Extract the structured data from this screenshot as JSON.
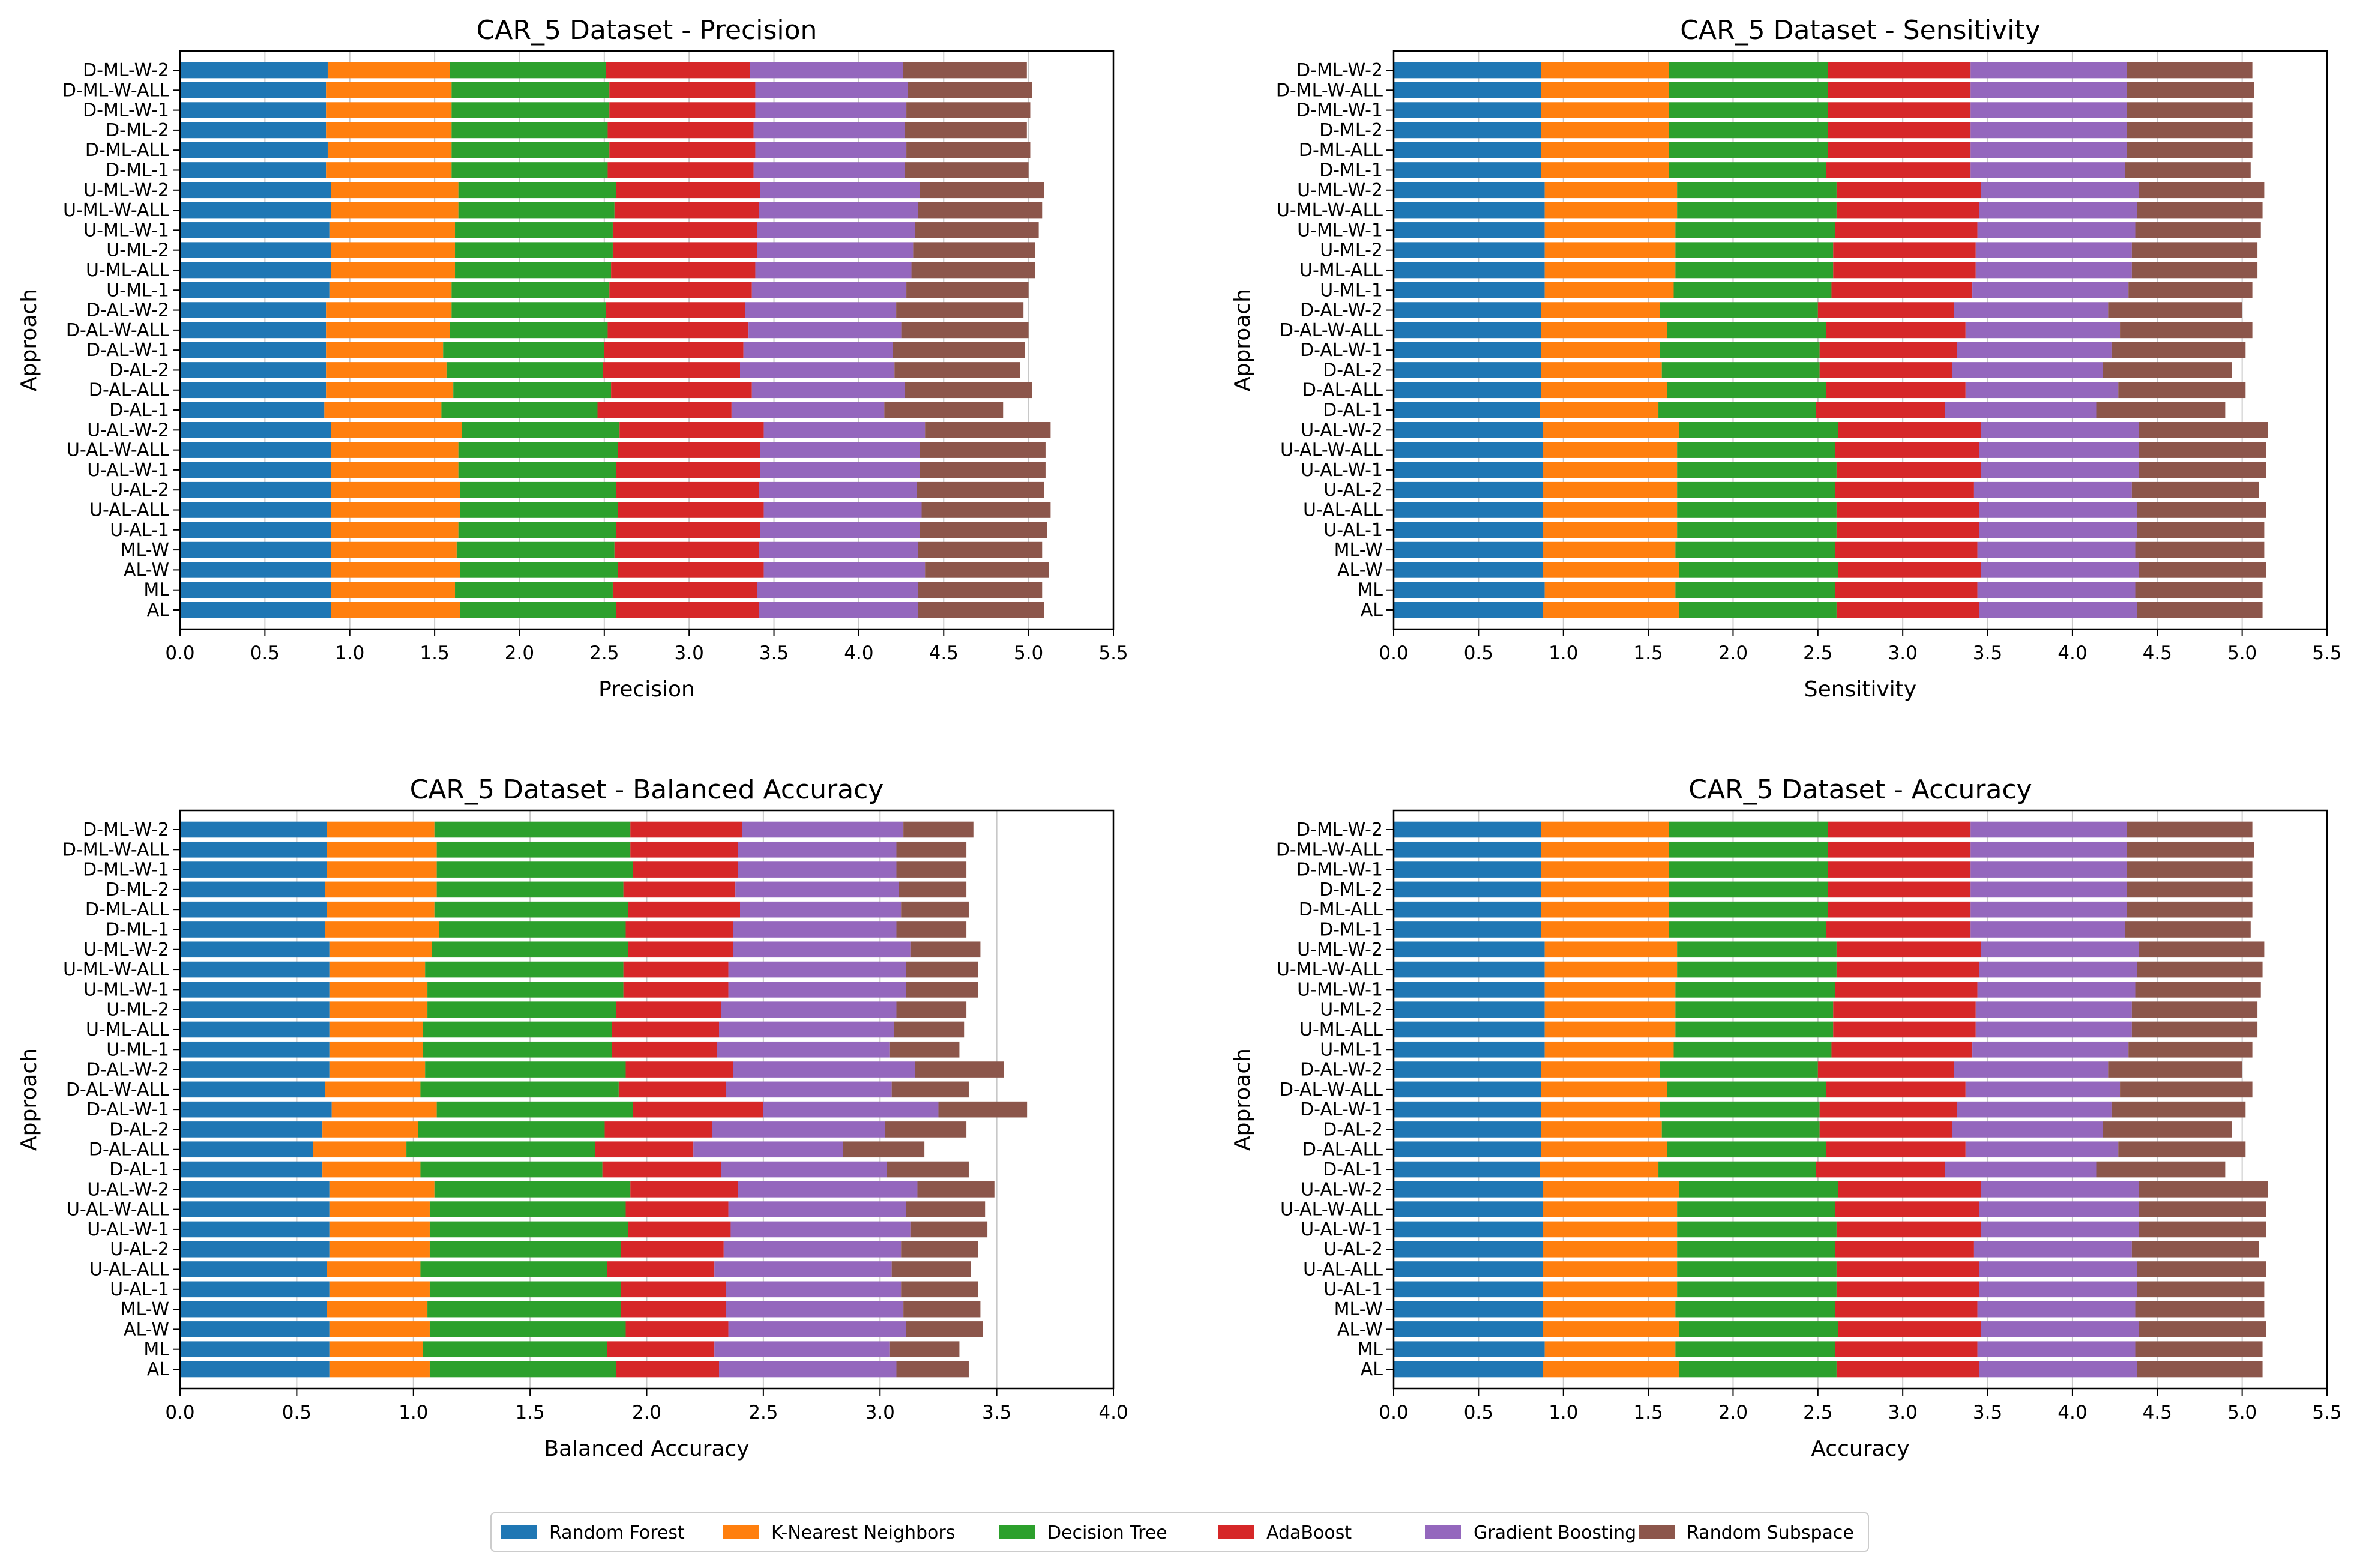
{
  "legend": [
    {
      "name": "Random Forest",
      "color": "#1f77b4"
    },
    {
      "name": "K-Nearest Neighbors",
      "color": "#ff7f0e"
    },
    {
      "name": "Decision Tree",
      "color": "#2ca02c"
    },
    {
      "name": "AdaBoost",
      "color": "#d62728"
    },
    {
      "name": "Gradient Boosting",
      "color": "#9467bd"
    },
    {
      "name": "Random Subspace",
      "color": "#8c564b"
    }
  ],
  "chart_data": [
    {
      "type": "bar",
      "orientation": "horizontal-stacked",
      "title": "CAR_5 Dataset - Precision",
      "xlabel": "Precision",
      "ylabel": "Approach",
      "xlim": [
        0,
        5.5
      ],
      "xticks": [
        "0.0",
        "0.5",
        "1.0",
        "1.5",
        "2.0",
        "2.5",
        "3.0",
        "3.5",
        "4.0",
        "4.5",
        "5.0",
        "5.5"
      ],
      "grid": "x",
      "categories": [
        "D-ML-W-2",
        "D-ML-W-ALL",
        "D-ML-W-1",
        "D-ML-2",
        "D-ML-ALL",
        "D-ML-1",
        "U-ML-W-2",
        "U-ML-W-ALL",
        "U-ML-W-1",
        "U-ML-2",
        "U-ML-ALL",
        "U-ML-1",
        "D-AL-W-2",
        "D-AL-W-ALL",
        "D-AL-W-1",
        "D-AL-2",
        "D-AL-ALL",
        "D-AL-1",
        "U-AL-W-2",
        "U-AL-W-ALL",
        "U-AL-W-1",
        "U-AL-2",
        "U-AL-ALL",
        "U-AL-1",
        "ML-W",
        "AL-W",
        "ML",
        "AL"
      ],
      "series": [
        {
          "name": "Random Forest",
          "values": [
            0.87,
            0.86,
            0.86,
            0.86,
            0.87,
            0.86,
            0.89,
            0.89,
            0.88,
            0.89,
            0.89,
            0.88,
            0.86,
            0.86,
            0.86,
            0.86,
            0.86,
            0.85,
            0.89,
            0.89,
            0.89,
            0.89,
            0.89,
            0.89,
            0.89,
            0.89,
            0.89,
            0.89
          ]
        },
        {
          "name": "K-Nearest Neighbors",
          "values": [
            0.72,
            0.74,
            0.74,
            0.74,
            0.73,
            0.74,
            0.75,
            0.75,
            0.74,
            0.73,
            0.73,
            0.72,
            0.74,
            0.73,
            0.69,
            0.71,
            0.75,
            0.69,
            0.77,
            0.75,
            0.75,
            0.76,
            0.76,
            0.75,
            0.74,
            0.76,
            0.73,
            0.76
          ]
        },
        {
          "name": "Decision Tree",
          "values": [
            0.92,
            0.93,
            0.93,
            0.92,
            0.93,
            0.92,
            0.93,
            0.92,
            0.93,
            0.93,
            0.92,
            0.93,
            0.91,
            0.93,
            0.95,
            0.92,
            0.93,
            0.92,
            0.93,
            0.94,
            0.93,
            0.92,
            0.93,
            0.93,
            0.93,
            0.93,
            0.93,
            0.92
          ]
        },
        {
          "name": "AdaBoost",
          "values": [
            0.85,
            0.86,
            0.86,
            0.86,
            0.86,
            0.86,
            0.85,
            0.85,
            0.85,
            0.85,
            0.85,
            0.84,
            0.82,
            0.83,
            0.82,
            0.81,
            0.83,
            0.79,
            0.85,
            0.84,
            0.85,
            0.84,
            0.86,
            0.85,
            0.85,
            0.86,
            0.85,
            0.84
          ]
        },
        {
          "name": "Gradient Boosting",
          "values": [
            0.9,
            0.9,
            0.89,
            0.89,
            0.89,
            0.89,
            0.94,
            0.94,
            0.93,
            0.92,
            0.92,
            0.91,
            0.89,
            0.9,
            0.88,
            0.91,
            0.9,
            0.9,
            0.95,
            0.94,
            0.94,
            0.93,
            0.93,
            0.94,
            0.94,
            0.95,
            0.95,
            0.94
          ]
        },
        {
          "name": "Random Subspace",
          "values": [
            0.73,
            0.73,
            0.73,
            0.72,
            0.73,
            0.73,
            0.73,
            0.73,
            0.73,
            0.72,
            0.73,
            0.72,
            0.75,
            0.75,
            0.78,
            0.74,
            0.75,
            0.7,
            0.74,
            0.74,
            0.74,
            0.75,
            0.76,
            0.75,
            0.73,
            0.73,
            0.73,
            0.74
          ]
        }
      ]
    },
    {
      "type": "bar",
      "orientation": "horizontal-stacked",
      "title": "CAR_5 Dataset - Sensitivity",
      "xlabel": "Sensitivity",
      "ylabel": "Approach",
      "xlim": [
        0,
        5.5
      ],
      "xticks": [
        "0.0",
        "0.5",
        "1.0",
        "1.5",
        "2.0",
        "2.5",
        "3.0",
        "3.5",
        "4.0",
        "4.5",
        "5.0",
        "5.5"
      ],
      "grid": "x",
      "categories": [
        "D-ML-W-2",
        "D-ML-W-ALL",
        "D-ML-W-1",
        "D-ML-2",
        "D-ML-ALL",
        "D-ML-1",
        "U-ML-W-2",
        "U-ML-W-ALL",
        "U-ML-W-1",
        "U-ML-2",
        "U-ML-ALL",
        "U-ML-1",
        "D-AL-W-2",
        "D-AL-W-ALL",
        "D-AL-W-1",
        "D-AL-2",
        "D-AL-ALL",
        "D-AL-1",
        "U-AL-W-2",
        "U-AL-W-ALL",
        "U-AL-W-1",
        "U-AL-2",
        "U-AL-ALL",
        "U-AL-1",
        "ML-W",
        "AL-W",
        "ML",
        "AL"
      ],
      "series": [
        {
          "name": "Random Forest",
          "values": [
            0.87,
            0.87,
            0.87,
            0.87,
            0.87,
            0.87,
            0.89,
            0.89,
            0.89,
            0.89,
            0.89,
            0.89,
            0.87,
            0.87,
            0.87,
            0.87,
            0.87,
            0.86,
            0.88,
            0.88,
            0.88,
            0.88,
            0.88,
            0.88,
            0.88,
            0.88,
            0.89,
            0.88
          ]
        },
        {
          "name": "K-Nearest Neighbors",
          "values": [
            0.75,
            0.75,
            0.75,
            0.75,
            0.75,
            0.75,
            0.78,
            0.78,
            0.77,
            0.77,
            0.77,
            0.76,
            0.7,
            0.74,
            0.7,
            0.71,
            0.74,
            0.7,
            0.8,
            0.79,
            0.79,
            0.79,
            0.79,
            0.79,
            0.78,
            0.8,
            0.77,
            0.8
          ]
        },
        {
          "name": "Decision Tree",
          "values": [
            0.94,
            0.94,
            0.94,
            0.94,
            0.94,
            0.93,
            0.94,
            0.94,
            0.94,
            0.93,
            0.93,
            0.93,
            0.93,
            0.94,
            0.94,
            0.93,
            0.94,
            0.93,
            0.94,
            0.93,
            0.94,
            0.93,
            0.94,
            0.94,
            0.94,
            0.94,
            0.94,
            0.93
          ]
        },
        {
          "name": "AdaBoost",
          "values": [
            0.84,
            0.84,
            0.84,
            0.84,
            0.84,
            0.85,
            0.85,
            0.84,
            0.84,
            0.84,
            0.84,
            0.83,
            0.8,
            0.82,
            0.81,
            0.78,
            0.82,
            0.76,
            0.84,
            0.85,
            0.85,
            0.82,
            0.84,
            0.84,
            0.84,
            0.84,
            0.84,
            0.84
          ]
        },
        {
          "name": "Gradient Boosting",
          "values": [
            0.92,
            0.92,
            0.92,
            0.92,
            0.92,
            0.91,
            0.93,
            0.93,
            0.93,
            0.92,
            0.92,
            0.92,
            0.91,
            0.91,
            0.91,
            0.89,
            0.9,
            0.89,
            0.93,
            0.94,
            0.93,
            0.93,
            0.93,
            0.93,
            0.93,
            0.93,
            0.93,
            0.93
          ]
        },
        {
          "name": "Random Subspace",
          "values": [
            0.74,
            0.75,
            0.74,
            0.74,
            0.74,
            0.74,
            0.74,
            0.74,
            0.74,
            0.74,
            0.74,
            0.73,
            0.79,
            0.78,
            0.79,
            0.76,
            0.75,
            0.76,
            0.76,
            0.75,
            0.75,
            0.75,
            0.76,
            0.75,
            0.76,
            0.75,
            0.75,
            0.74
          ]
        }
      ]
    },
    {
      "type": "bar",
      "orientation": "horizontal-stacked",
      "title": "CAR_5 Dataset - Balanced Accuracy",
      "xlabel": "Balanced Accuracy",
      "ylabel": "Approach",
      "xlim": [
        0,
        4.0
      ],
      "xticks": [
        "0.0",
        "0.5",
        "1.0",
        "1.5",
        "2.0",
        "2.5",
        "3.0",
        "3.5",
        "4.0"
      ],
      "grid": "x",
      "categories": [
        "D-ML-W-2",
        "D-ML-W-ALL",
        "D-ML-W-1",
        "D-ML-2",
        "D-ML-ALL",
        "D-ML-1",
        "U-ML-W-2",
        "U-ML-W-ALL",
        "U-ML-W-1",
        "U-ML-2",
        "U-ML-ALL",
        "U-ML-1",
        "D-AL-W-2",
        "D-AL-W-ALL",
        "D-AL-W-1",
        "D-AL-2",
        "D-AL-ALL",
        "D-AL-1",
        "U-AL-W-2",
        "U-AL-W-ALL",
        "U-AL-W-1",
        "U-AL-2",
        "U-AL-ALL",
        "U-AL-1",
        "ML-W",
        "AL-W",
        "ML",
        "AL"
      ],
      "series": [
        {
          "name": "Random Forest",
          "values": [
            0.63,
            0.63,
            0.63,
            0.62,
            0.63,
            0.62,
            0.64,
            0.64,
            0.64,
            0.64,
            0.64,
            0.64,
            0.64,
            0.62,
            0.65,
            0.61,
            0.57,
            0.61,
            0.64,
            0.64,
            0.64,
            0.64,
            0.63,
            0.64,
            0.63,
            0.64,
            0.64,
            0.64
          ]
        },
        {
          "name": "K-Nearest Neighbors",
          "values": [
            0.46,
            0.47,
            0.47,
            0.48,
            0.46,
            0.49,
            0.44,
            0.41,
            0.42,
            0.42,
            0.4,
            0.4,
            0.41,
            0.41,
            0.45,
            0.41,
            0.4,
            0.42,
            0.45,
            0.43,
            0.43,
            0.43,
            0.4,
            0.43,
            0.43,
            0.43,
            0.4,
            0.43
          ]
        },
        {
          "name": "Decision Tree",
          "values": [
            0.84,
            0.83,
            0.84,
            0.8,
            0.83,
            0.8,
            0.84,
            0.85,
            0.84,
            0.81,
            0.81,
            0.81,
            0.86,
            0.85,
            0.84,
            0.8,
            0.81,
            0.78,
            0.84,
            0.84,
            0.85,
            0.82,
            0.8,
            0.82,
            0.83,
            0.84,
            0.79,
            0.8
          ]
        },
        {
          "name": "AdaBoost",
          "values": [
            0.48,
            0.46,
            0.45,
            0.48,
            0.48,
            0.46,
            0.45,
            0.45,
            0.45,
            0.45,
            0.46,
            0.45,
            0.46,
            0.46,
            0.56,
            0.46,
            0.42,
            0.51,
            0.46,
            0.44,
            0.44,
            0.44,
            0.46,
            0.45,
            0.45,
            0.44,
            0.46,
            0.44
          ]
        },
        {
          "name": "Gradient Boosting",
          "values": [
            0.69,
            0.68,
            0.68,
            0.7,
            0.69,
            0.7,
            0.76,
            0.76,
            0.76,
            0.75,
            0.75,
            0.74,
            0.78,
            0.71,
            0.75,
            0.74,
            0.64,
            0.71,
            0.77,
            0.76,
            0.77,
            0.76,
            0.76,
            0.75,
            0.76,
            0.76,
            0.75,
            0.76
          ]
        },
        {
          "name": "Random Subspace",
          "values": [
            0.3,
            0.3,
            0.3,
            0.29,
            0.29,
            0.3,
            0.3,
            0.31,
            0.31,
            0.3,
            0.3,
            0.3,
            0.38,
            0.33,
            0.38,
            0.35,
            0.35,
            0.35,
            0.33,
            0.34,
            0.33,
            0.33,
            0.34,
            0.33,
            0.33,
            0.33,
            0.3,
            0.31
          ]
        }
      ]
    },
    {
      "type": "bar",
      "orientation": "horizontal-stacked",
      "title": "CAR_5 Dataset - Accuracy",
      "xlabel": "Accuracy",
      "ylabel": "Approach",
      "xlim": [
        0,
        5.5
      ],
      "xticks": [
        "0.0",
        "0.5",
        "1.0",
        "1.5",
        "2.0",
        "2.5",
        "3.0",
        "3.5",
        "4.0",
        "4.5",
        "5.0",
        "5.5"
      ],
      "grid": "x",
      "categories": [
        "D-ML-W-2",
        "D-ML-W-ALL",
        "D-ML-W-1",
        "D-ML-2",
        "D-ML-ALL",
        "D-ML-1",
        "U-ML-W-2",
        "U-ML-W-ALL",
        "U-ML-W-1",
        "U-ML-2",
        "U-ML-ALL",
        "U-ML-1",
        "D-AL-W-2",
        "D-AL-W-ALL",
        "D-AL-W-1",
        "D-AL-2",
        "D-AL-ALL",
        "D-AL-1",
        "U-AL-W-2",
        "U-AL-W-ALL",
        "U-AL-W-1",
        "U-AL-2",
        "U-AL-ALL",
        "U-AL-1",
        "ML-W",
        "AL-W",
        "ML",
        "AL"
      ],
      "series": [
        {
          "name": "Random Forest",
          "values": [
            0.87,
            0.87,
            0.87,
            0.87,
            0.87,
            0.87,
            0.89,
            0.89,
            0.89,
            0.89,
            0.89,
            0.89,
            0.87,
            0.87,
            0.87,
            0.87,
            0.87,
            0.86,
            0.88,
            0.88,
            0.88,
            0.88,
            0.88,
            0.88,
            0.88,
            0.88,
            0.89,
            0.88
          ]
        },
        {
          "name": "K-Nearest Neighbors",
          "values": [
            0.75,
            0.75,
            0.75,
            0.75,
            0.75,
            0.75,
            0.78,
            0.78,
            0.77,
            0.77,
            0.77,
            0.76,
            0.7,
            0.74,
            0.7,
            0.71,
            0.74,
            0.7,
            0.8,
            0.79,
            0.79,
            0.79,
            0.79,
            0.79,
            0.78,
            0.8,
            0.77,
            0.8
          ]
        },
        {
          "name": "Decision Tree",
          "values": [
            0.94,
            0.94,
            0.94,
            0.94,
            0.94,
            0.93,
            0.94,
            0.94,
            0.94,
            0.93,
            0.93,
            0.93,
            0.93,
            0.94,
            0.94,
            0.93,
            0.94,
            0.93,
            0.94,
            0.93,
            0.94,
            0.93,
            0.94,
            0.94,
            0.94,
            0.94,
            0.94,
            0.93
          ]
        },
        {
          "name": "AdaBoost",
          "values": [
            0.84,
            0.84,
            0.84,
            0.84,
            0.84,
            0.85,
            0.85,
            0.84,
            0.84,
            0.84,
            0.84,
            0.83,
            0.8,
            0.82,
            0.81,
            0.78,
            0.82,
            0.76,
            0.84,
            0.85,
            0.85,
            0.82,
            0.84,
            0.84,
            0.84,
            0.84,
            0.84,
            0.84
          ]
        },
        {
          "name": "Gradient Boosting",
          "values": [
            0.92,
            0.92,
            0.92,
            0.92,
            0.92,
            0.91,
            0.93,
            0.93,
            0.93,
            0.92,
            0.92,
            0.92,
            0.91,
            0.91,
            0.91,
            0.89,
            0.9,
            0.89,
            0.93,
            0.94,
            0.93,
            0.93,
            0.93,
            0.93,
            0.93,
            0.93,
            0.93,
            0.93
          ]
        },
        {
          "name": "Random Subspace",
          "values": [
            0.74,
            0.75,
            0.74,
            0.74,
            0.74,
            0.74,
            0.74,
            0.74,
            0.74,
            0.74,
            0.74,
            0.73,
            0.79,
            0.78,
            0.79,
            0.76,
            0.75,
            0.76,
            0.76,
            0.75,
            0.75,
            0.75,
            0.76,
            0.75,
            0.76,
            0.75,
            0.75,
            0.74
          ]
        }
      ]
    }
  ]
}
